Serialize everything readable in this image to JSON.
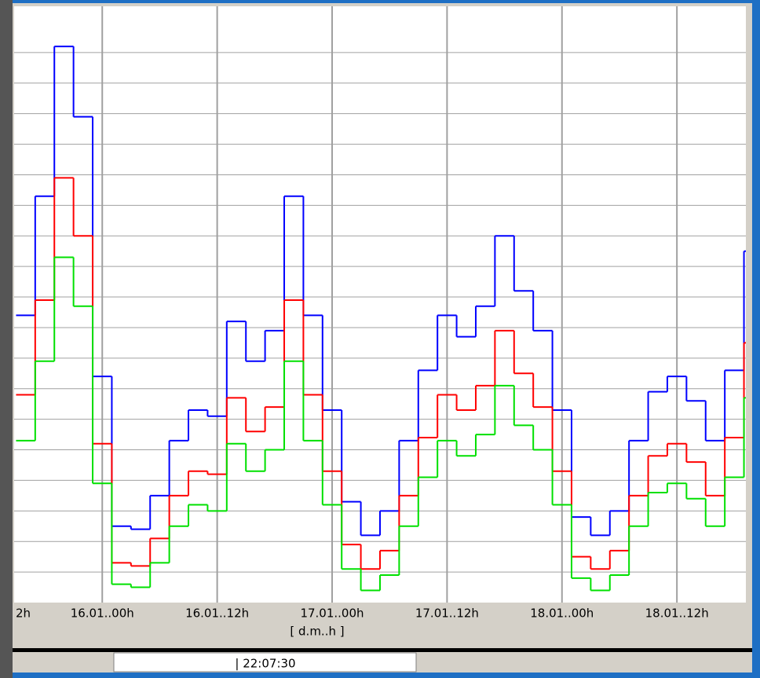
{
  "chart_data": {
    "type": "line",
    "drawstyle": "steps-post",
    "x_label": "[ d.m..h ]",
    "x": [
      -9,
      -7,
      -5,
      -3,
      -1,
      1,
      3,
      5,
      7,
      9,
      11,
      13,
      15,
      17,
      19,
      21,
      23,
      25,
      27,
      29,
      31,
      33,
      35,
      37,
      39,
      41,
      43,
      45,
      47,
      49,
      51,
      53,
      55,
      57,
      59,
      61,
      63,
      65,
      67
    ],
    "xlim": [
      -9.2,
      67.2
    ],
    "xticks": [
      {
        "value": -12,
        "label": "2h"
      },
      {
        "value": 0,
        "label": "16.01..00h"
      },
      {
        "value": 12,
        "label": "16.01..12h"
      },
      {
        "value": 24,
        "label": "17.01..00h"
      },
      {
        "value": 36,
        "label": "17.01..12h"
      },
      {
        "value": 48,
        "label": "18.01..00h"
      },
      {
        "value": 60,
        "label": "18.01..12h"
      }
    ],
    "ylim": [
      0,
      19
    ],
    "yticks": [
      1,
      2,
      3,
      4,
      5,
      6,
      7,
      8,
      9,
      10,
      11,
      12,
      13,
      14,
      15,
      16,
      17,
      18
    ],
    "grid": true,
    "series": [
      {
        "color": "#0000ff",
        "values": [
          9.4,
          13.3,
          18.2,
          15.9,
          7.4,
          2.5,
          2.4,
          3.5,
          5.3,
          6.3,
          6.1,
          9.2,
          7.9,
          8.9,
          13.3,
          9.4,
          6.3,
          3.3,
          2.2,
          3.0,
          5.3,
          7.6,
          9.4,
          8.7,
          9.7,
          12.0,
          10.2,
          8.9,
          6.3,
          2.8,
          2.2,
          3.0,
          5.3,
          6.9,
          7.4,
          6.6,
          5.3,
          7.6,
          11.5
        ]
      },
      {
        "color": "#ff0000",
        "values": [
          6.8,
          9.9,
          13.9,
          12.0,
          5.2,
          1.3,
          1.2,
          2.1,
          3.5,
          4.3,
          4.2,
          6.7,
          5.6,
          6.4,
          9.9,
          6.8,
          4.3,
          1.9,
          1.1,
          1.7,
          3.5,
          5.4,
          6.8,
          6.3,
          7.1,
          8.9,
          7.5,
          6.4,
          4.3,
          1.5,
          1.1,
          1.7,
          3.5,
          4.8,
          5.2,
          4.6,
          3.5,
          5.4,
          8.5
        ]
      },
      {
        "color": "#00e000",
        "values": [
          5.3,
          7.9,
          11.3,
          9.7,
          3.9,
          0.6,
          0.5,
          1.3,
          2.5,
          3.2,
          3.0,
          5.2,
          4.3,
          5.0,
          7.9,
          5.3,
          3.2,
          1.1,
          0.4,
          0.9,
          2.5,
          4.1,
          5.3,
          4.8,
          5.5,
          7.1,
          5.8,
          5.0,
          3.2,
          0.8,
          0.4,
          0.9,
          2.5,
          3.6,
          3.9,
          3.4,
          2.5,
          4.1,
          6.7
        ]
      }
    ]
  },
  "status_bar": {
    "time": "| 22:07:30"
  }
}
